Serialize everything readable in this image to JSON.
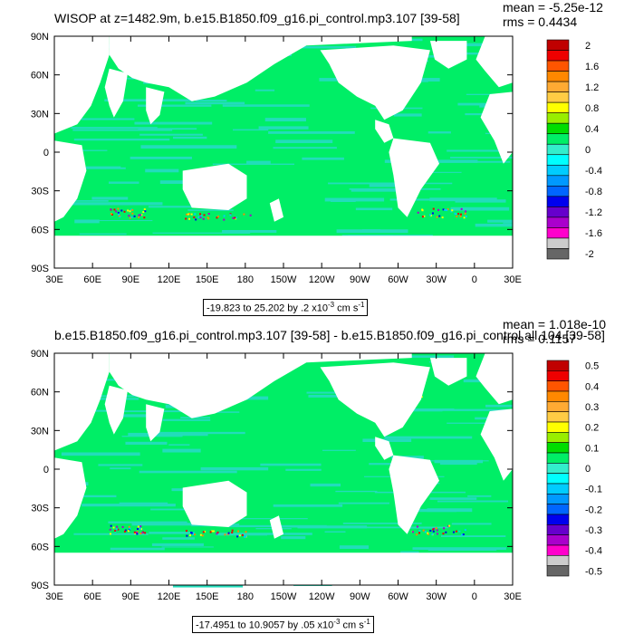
{
  "panel1": {
    "title": "WISOP at z=1482.9m, b.e15.B1850.f09_g16.pi_control.mp3.107 [39-58]",
    "mean": "mean = -5.25e-12",
    "rms": "rms = 0.4434",
    "range_prefix": "-19.823 to 25.202 by .2 x10",
    "range_exp": "-3",
    "range_unit": " cm s",
    "range_unit_exp": "-1"
  },
  "panel2": {
    "title": "b.e15.B1850.f09_g16.pi_control.mp3.107 [39-58] - b.e15.B1850.f09_g16.pi_control.all.104 [39-58]",
    "mean": "mean = 1.018e-10",
    "rms": "rms = 0.1157",
    "range_prefix": "-17.4951 to 10.9057 by .05 x10",
    "range_exp": "-3",
    "range_unit": " cm s",
    "range_unit_exp": "-1"
  },
  "colors": {
    "ocean_main": "#00ee66",
    "ocean_alt": "#22ddbb",
    "land": "#ffffff"
  },
  "chart_data": [
    {
      "type": "heatmap",
      "title": "WISOP at z=1482.9m, b.e15.B1850.f09_g16.pi_control.mp3.107 [39-58]",
      "x_ticks": [
        "30E",
        "60E",
        "90E",
        "120E",
        "150E",
        "180",
        "150W",
        "120W",
        "90W",
        "60W",
        "30W",
        "0",
        "30E"
      ],
      "y_ticks": [
        "90N",
        "60N",
        "30N",
        "0",
        "30S",
        "60S",
        "90S"
      ],
      "colorbar_labels": [
        "2",
        "1.6",
        "1.2",
        "0.8",
        "0.4",
        "0",
        "-0.4",
        "-0.8",
        "-1.2",
        "-1.6",
        "-2"
      ],
      "colorbar_colors": [
        "#c00000",
        "#ee0000",
        "#ff5500",
        "#ff8800",
        "#ffaa33",
        "#ffcc44",
        "#ffff00",
        "#99ee00",
        "#00dd00",
        "#00ee66",
        "#33eecc",
        "#00ffff",
        "#00ccff",
        "#0099ff",
        "#0066ff",
        "#0000ee",
        "#6600cc",
        "#aa00cc",
        "#ff00cc",
        "#cccccc",
        "#666666"
      ],
      "min": -19.823,
      "max": 25.202,
      "interval": 0.2,
      "units": "x10^-3 cm s^-1",
      "mean": -5.25e-12,
      "rms": 0.4434
    },
    {
      "type": "heatmap",
      "title": "b.e15.B1850.f09_g16.pi_control.mp3.107 [39-58] - b.e15.B1850.f09_g16.pi_control.all.104 [39-58]",
      "x_ticks": [
        "30E",
        "60E",
        "90E",
        "120E",
        "150E",
        "180",
        "150W",
        "120W",
        "90W",
        "60W",
        "30W",
        "0",
        "30E"
      ],
      "y_ticks": [
        "90N",
        "60N",
        "30N",
        "0",
        "30S",
        "60S",
        "90S"
      ],
      "colorbar_labels": [
        "0.5",
        "0.4",
        "0.3",
        "0.2",
        "0.1",
        "0",
        "-0.1",
        "-0.2",
        "-0.3",
        "-0.4",
        "-0.5"
      ],
      "colorbar_colors": [
        "#c00000",
        "#ee0000",
        "#ff5500",
        "#ff8800",
        "#ffaa33",
        "#ffcc44",
        "#ffff00",
        "#99ee00",
        "#00dd00",
        "#00ee66",
        "#33eecc",
        "#00ffff",
        "#00ccff",
        "#0099ff",
        "#0066ff",
        "#0000ee",
        "#6600cc",
        "#aa00cc",
        "#ff00cc",
        "#cccccc",
        "#666666"
      ],
      "min": -17.4951,
      "max": 10.9057,
      "interval": 0.05,
      "units": "x10^-3 cm s^-1",
      "mean": 1.018e-10,
      "rms": 0.1157
    }
  ]
}
